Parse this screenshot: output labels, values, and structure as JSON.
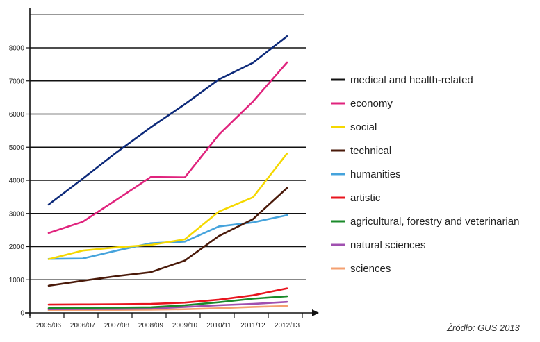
{
  "chart_data": {
    "type": "line",
    "categories": [
      "2005/06",
      "2006/07",
      "2007/08",
      "2008/09",
      "2009/10",
      "2010/11",
      "2011/12",
      "2012/13"
    ],
    "ylim": [
      0,
      9000
    ],
    "yticks": [
      0,
      1000,
      2000,
      3000,
      4000,
      5000,
      6000,
      7000,
      8000
    ],
    "grid": true,
    "legend_position": "right",
    "series": [
      {
        "name": "medical and health-related",
        "color": "#0d2a7a",
        "legend_color": "#111111",
        "values": [
          3270,
          4050,
          4850,
          5600,
          6300,
          7050,
          7550,
          8350
        ]
      },
      {
        "name": "economy",
        "color": "#e0237d",
        "values": [
          2410,
          2750,
          3420,
          4100,
          4090,
          5380,
          6380,
          7560
        ]
      },
      {
        "name": "social",
        "color": "#f5d800",
        "values": [
          1620,
          1880,
          1980,
          2050,
          2220,
          3060,
          3490,
          4810
        ]
      },
      {
        "name": "technical",
        "color": "#4a1a0a",
        "values": [
          820,
          970,
          1110,
          1230,
          1580,
          2320,
          2830,
          3770
        ]
      },
      {
        "name": "humanities",
        "color": "#45a3dc",
        "values": [
          1630,
          1640,
          1880,
          2100,
          2150,
          2610,
          2730,
          2950
        ]
      },
      {
        "name": "artistic",
        "color": "#e8141e",
        "values": [
          250,
          255,
          260,
          270,
          310,
          400,
          530,
          740
        ]
      },
      {
        "name": "agricultural, forestry and veterinarian",
        "color": "#1a8a2a",
        "values": [
          140,
          150,
          160,
          170,
          230,
          320,
          430,
          500
        ]
      },
      {
        "name": "natural sciences",
        "color": "#a050b0",
        "values": [
          110,
          115,
          120,
          130,
          180,
          230,
          270,
          330
        ]
      },
      {
        "name": "sciences",
        "color": "#f4a070",
        "values": [
          80,
          85,
          90,
          95,
          110,
          140,
          180,
          210
        ]
      }
    ]
  },
  "source_note": "Źródło: GUS 2013"
}
